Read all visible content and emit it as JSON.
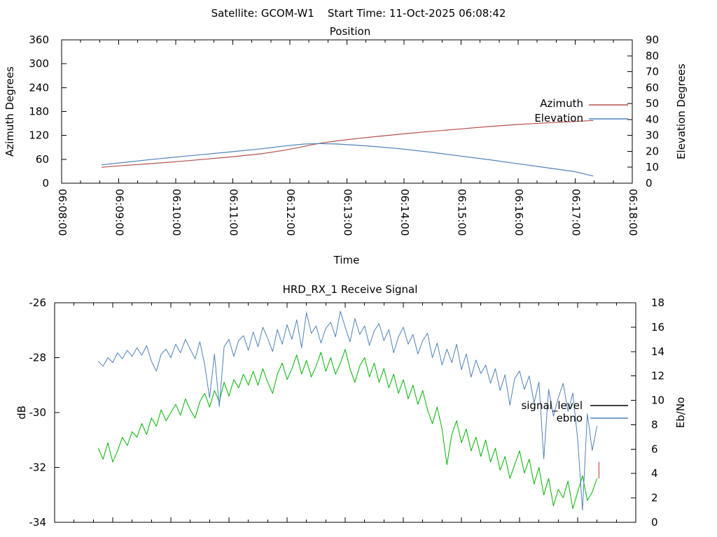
{
  "header": {
    "title": "Satellite: GCOM-W1    Start Time: 11-Oct-2025 06:08:42"
  },
  "colors": {
    "azimuth_red": "#b5504a",
    "elevation_blue": "#4f81bd",
    "signal_green": "#00b200",
    "ebno_blue": "#4f81bd",
    "legend_black": "#000000",
    "end_marker_red": "#c0504d",
    "axis_black": "#000000"
  },
  "chart_data": [
    {
      "type": "line",
      "title": "Position",
      "xlabel": "Time",
      "x_axis": {
        "min": 0,
        "max": 600,
        "major_step": 60,
        "minor_step": 20,
        "show_labels": true,
        "tick_labels": [
          "06:08:00",
          "06:09:00",
          "06:10:00",
          "06:11:00",
          "06:12:00",
          "06:13:00",
          "06:14:00",
          "06:15:00",
          "06:16:00",
          "06:17:00",
          "06:18:00"
        ]
      },
      "y_left": {
        "label": "Azimuth Degrees",
        "min": 0,
        "max": 360,
        "ticks": [
          0,
          60,
          120,
          180,
          240,
          300,
          360
        ]
      },
      "y_right": {
        "label": "Elevation Degrees",
        "min": 0,
        "max": 90,
        "ticks": [
          0,
          10,
          20,
          30,
          40,
          50,
          60,
          70,
          80,
          90
        ]
      },
      "series": [
        {
          "name": "Azimuth",
          "axis": "left",
          "color": "#b5504a",
          "width": 1.2,
          "points": [
            [
              42,
              40
            ],
            [
              60,
              43.5
            ],
            [
              90,
              48.5
            ],
            [
              120,
              54
            ],
            [
              150,
              60
            ],
            [
              180,
              66.5
            ],
            [
              210,
              74
            ],
            [
              235,
              83
            ],
            [
              250,
              90
            ],
            [
              262,
              96
            ],
            [
              275,
              101.5
            ],
            [
              290,
              106.5
            ],
            [
              310,
              112
            ],
            [
              330,
              117
            ],
            [
              360,
              124
            ],
            [
              390,
              130.5
            ],
            [
              420,
              136.5
            ],
            [
              450,
              142.5
            ],
            [
              480,
              147.5
            ],
            [
              510,
              151.5
            ],
            [
              540,
              155
            ],
            [
              559,
              157.5
            ]
          ]
        },
        {
          "name": "Elevation",
          "axis": "right",
          "color": "#4f81bd",
          "width": 1.2,
          "points": [
            [
              42,
              11.5
            ],
            [
              60,
              12.7
            ],
            [
              90,
              14.6
            ],
            [
              120,
              16.4
            ],
            [
              150,
              18.1
            ],
            [
              180,
              19.8
            ],
            [
              210,
              21.6
            ],
            [
              235,
              23.4
            ],
            [
              255,
              24.6
            ],
            [
              270,
              24.9
            ],
            [
              290,
              24.6
            ],
            [
              310,
              23.9
            ],
            [
              330,
              23
            ],
            [
              360,
              21.4
            ],
            [
              390,
              19.3
            ],
            [
              420,
              17
            ],
            [
              450,
              14.7
            ],
            [
              480,
              12.2
            ],
            [
              510,
              9.7
            ],
            [
              540,
              7.2
            ],
            [
              559,
              4.5
            ]
          ]
        }
      ],
      "legend": [
        {
          "label": "Azimuth",
          "color": "#b5504a"
        },
        {
          "label": "Elevation",
          "color": "#4f81bd"
        }
      ]
    },
    {
      "type": "line",
      "title": "HRD_RX_1 Receive Signal",
      "x_axis": {
        "min": 0,
        "max": 600,
        "major_step": 60,
        "minor_step": 20,
        "show_labels": false,
        "tick_labels": []
      },
      "y_left": {
        "label": "dB",
        "min": -34,
        "max": -26,
        "ticks": [
          -26,
          -28,
          -30,
          -32,
          -34
        ]
      },
      "y_right": {
        "label": "Eb/No",
        "min": 0,
        "max": 18,
        "ticks": [
          0,
          2,
          4,
          6,
          8,
          10,
          12,
          14,
          16,
          18
        ]
      },
      "series": [
        {
          "name": "signal_level",
          "axis": "left",
          "color": "#00b200",
          "width": 1,
          "t0": 45,
          "dt": 5,
          "values": [
            -31.3,
            -31.7,
            -31.1,
            -31.8,
            -31.4,
            -30.9,
            -31.2,
            -30.7,
            -30.9,
            -30.4,
            -30.8,
            -30.2,
            -30.5,
            -29.9,
            -30.3,
            -30.0,
            -29.7,
            -30.1,
            -29.5,
            -29.9,
            -30.2,
            -29.6,
            -29.3,
            -29.8,
            -29.2,
            -29.6,
            -28.9,
            -29.4,
            -28.8,
            -29.1,
            -28.6,
            -29.0,
            -28.5,
            -29.0,
            -28.4,
            -28.9,
            -29.3,
            -28.6,
            -28.2,
            -28.8,
            -28.4,
            -27.9,
            -28.6,
            -28.1,
            -28.7,
            -28.3,
            -27.8,
            -28.5,
            -28.0,
            -28.6,
            -28.2,
            -27.7,
            -28.4,
            -28.9,
            -28.3,
            -28.0,
            -28.7,
            -28.2,
            -28.9,
            -28.4,
            -29.1,
            -28.6,
            -29.3,
            -28.8,
            -29.5,
            -29.0,
            -29.7,
            -29.2,
            -29.9,
            -30.4,
            -29.8,
            -30.6,
            -31.9,
            -30.8,
            -30.3,
            -31.1,
            -30.6,
            -31.4,
            -30.9,
            -31.6,
            -31.0,
            -31.8,
            -31.3,
            -32.1,
            -31.6,
            -32.4,
            -31.9,
            -31.4,
            -32.2,
            -31.7,
            -32.6,
            -32.0,
            -33.0,
            -32.4,
            -33.4,
            -32.8,
            -33.1,
            -32.5,
            -33.5,
            -32.9,
            -32.3,
            -33.2,
            -32.9,
            -32.4
          ]
        },
        {
          "name": "ebno",
          "axis": "right",
          "color": "#4f81bd",
          "width": 1,
          "t0": 45,
          "dt": 5,
          "values": [
            13.2,
            12.8,
            13.5,
            13.1,
            13.9,
            13.4,
            14.1,
            13.6,
            14.3,
            13.7,
            14.5,
            13.2,
            12.4,
            13.8,
            14.2,
            13.5,
            14.6,
            13.9,
            15.0,
            14.2,
            13.4,
            14.8,
            12.9,
            10.2,
            13.8,
            9.5,
            14.4,
            15.0,
            13.6,
            14.9,
            15.3,
            14.1,
            15.6,
            14.4,
            16.0,
            15.1,
            14.0,
            15.8,
            14.6,
            16.2,
            15.0,
            16.6,
            14.3,
            17.2,
            15.5,
            16.1,
            14.7,
            15.9,
            16.4,
            15.2,
            17.3,
            16.0,
            14.8,
            16.7,
            15.4,
            16.1,
            14.5,
            15.7,
            16.3,
            14.9,
            15.8,
            13.9,
            15.2,
            16.0,
            14.6,
            15.4,
            13.8,
            14.9,
            15.5,
            13.5,
            14.7,
            12.9,
            14.2,
            13.1,
            14.6,
            12.5,
            13.8,
            11.9,
            13.3,
            12.2,
            12.9,
            11.4,
            12.6,
            10.8,
            12.1,
            9.6,
            11.8,
            12.4,
            10.9,
            12.0,
            9.8,
            11.5,
            5.2,
            10.9,
            8.7,
            10.2,
            11.4,
            9.1,
            10.6,
            6.8,
            1.0,
            8.9,
            5.9,
            7.9
          ]
        },
        {
          "name": "end_marker",
          "axis": "left",
          "color": "#c0504d",
          "width": 1.2,
          "points": [
            [
              562,
              -32.4
            ],
            [
              562,
              -31.8
            ]
          ]
        }
      ],
      "legend": [
        {
          "label": "signal_level",
          "color": "#000000"
        },
        {
          "label": "ebno",
          "color": "#4f81bd"
        }
      ]
    }
  ]
}
